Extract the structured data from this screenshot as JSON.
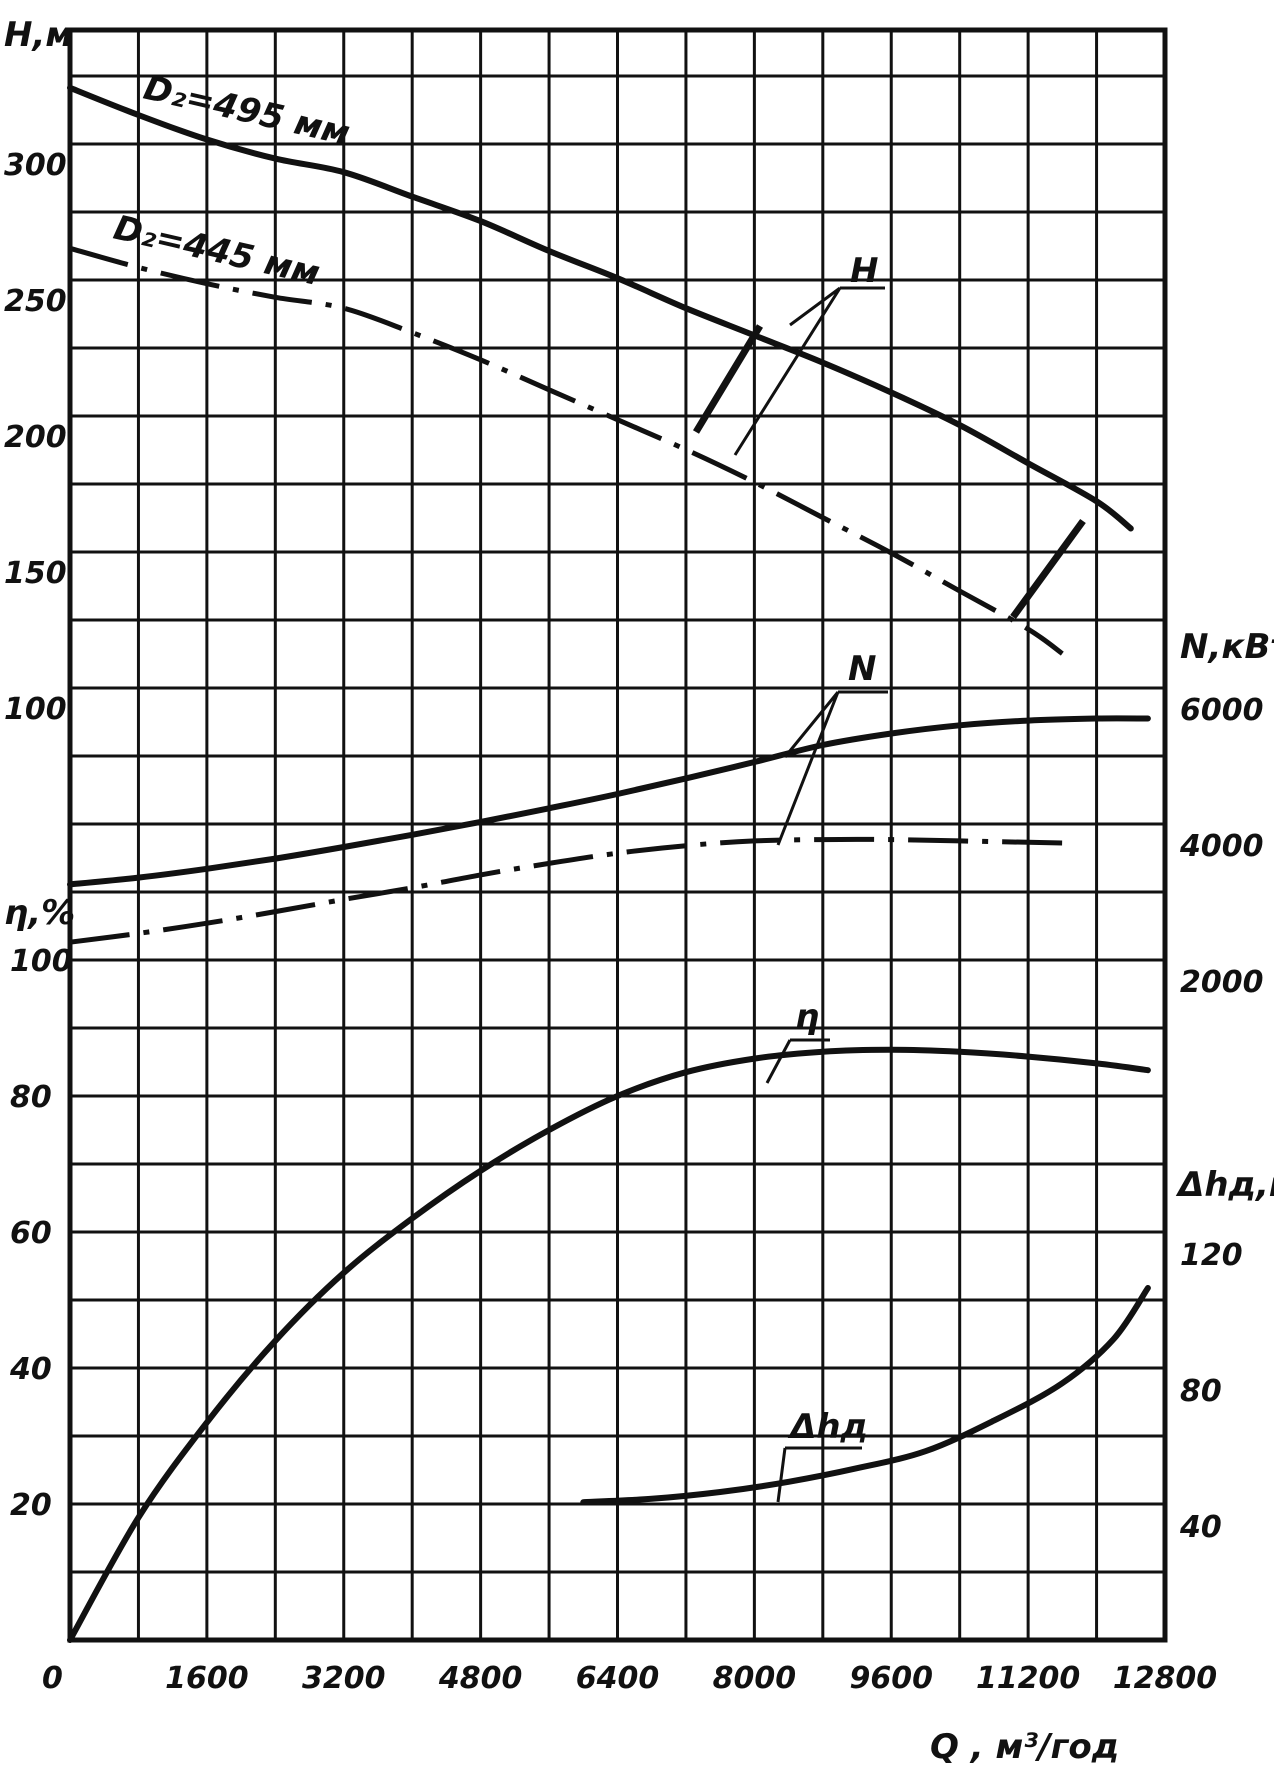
{
  "chart_data": {
    "type": "line",
    "x": {
      "label": "Q , м³/год",
      "ticks": [
        0,
        1600,
        3200,
        4800,
        6400,
        8000,
        9600,
        11200,
        12800
      ],
      "range": [
        0,
        12800
      ]
    },
    "left_axes": [
      {
        "key": "H",
        "label": "H,м",
        "ticks": [
          100,
          150,
          200,
          250,
          300
        ],
        "unit_min": 75,
        "unit_max": 337.5
      },
      {
        "key": "eta",
        "label": "η,%",
        "ticks": [
          0,
          20,
          40,
          60,
          80,
          100
        ],
        "unit_min": 0,
        "unit_max": 112.5
      }
    ],
    "right_axes": [
      {
        "key": "N",
        "label": "N,кВт",
        "ticks": [
          2000,
          4000,
          6000
        ]
      },
      {
        "key": "dh",
        "label": "Δhд,м",
        "ticks": [
          40,
          80,
          120
        ]
      }
    ],
    "series": [
      {
        "name": "D₂=495 мм",
        "axis": "H",
        "style": "solid",
        "points": [
          [
            0,
            328
          ],
          [
            800,
            318
          ],
          [
            1600,
            309
          ],
          [
            2400,
            302
          ],
          [
            3200,
            297
          ],
          [
            4000,
            288
          ],
          [
            4800,
            279
          ],
          [
            5600,
            268
          ],
          [
            6400,
            258
          ],
          [
            7200,
            247
          ],
          [
            8000,
            237
          ],
          [
            8800,
            227
          ],
          [
            9600,
            216
          ],
          [
            10400,
            204
          ],
          [
            11200,
            190
          ],
          [
            12000,
            176
          ],
          [
            12400,
            166
          ]
        ]
      },
      {
        "name": "D₂=445 мм",
        "axis": "H",
        "style": "dashdot",
        "points": [
          [
            0,
            269
          ],
          [
            800,
            262
          ],
          [
            1600,
            256
          ],
          [
            2400,
            251
          ],
          [
            3200,
            247
          ],
          [
            4000,
            238
          ],
          [
            4800,
            228
          ],
          [
            5600,
            217
          ],
          [
            6400,
            206
          ],
          [
            7200,
            195
          ],
          [
            8000,
            183
          ],
          [
            8800,
            170
          ],
          [
            9600,
            157
          ],
          [
            10400,
            143
          ],
          [
            11200,
            129
          ],
          [
            11600,
            120
          ]
        ]
      },
      {
        "name": "N (D₂=495 мм)",
        "axis": "N",
        "style": "solid",
        "points": [
          [
            0,
            3420
          ],
          [
            800,
            3520
          ],
          [
            1600,
            3650
          ],
          [
            2400,
            3800
          ],
          [
            3200,
            3970
          ],
          [
            4000,
            4150
          ],
          [
            4800,
            4340
          ],
          [
            5600,
            4540
          ],
          [
            6400,
            4750
          ],
          [
            7200,
            4980
          ],
          [
            8000,
            5220
          ],
          [
            8800,
            5470
          ],
          [
            9600,
            5640
          ],
          [
            10400,
            5760
          ],
          [
            11200,
            5830
          ],
          [
            12000,
            5860
          ],
          [
            12600,
            5860
          ]
        ]
      },
      {
        "name": "N (D₂=445 мм)",
        "axis": "N",
        "style": "dashdot",
        "points": [
          [
            0,
            2570
          ],
          [
            800,
            2700
          ],
          [
            1600,
            2850
          ],
          [
            2400,
            3020
          ],
          [
            3200,
            3200
          ],
          [
            4000,
            3370
          ],
          [
            4800,
            3560
          ],
          [
            5600,
            3730
          ],
          [
            6400,
            3880
          ],
          [
            7200,
            3990
          ],
          [
            8000,
            4060
          ],
          [
            8800,
            4080
          ],
          [
            9600,
            4080
          ],
          [
            10400,
            4060
          ],
          [
            11200,
            4040
          ],
          [
            11600,
            4030
          ]
        ]
      },
      {
        "name": "η",
        "axis": "eta",
        "style": "solid",
        "points": [
          [
            0,
            0
          ],
          [
            800,
            18
          ],
          [
            1600,
            32
          ],
          [
            2400,
            44
          ],
          [
            3200,
            54
          ],
          [
            4000,
            62
          ],
          [
            4800,
            69
          ],
          [
            5600,
            75
          ],
          [
            6400,
            80
          ],
          [
            7200,
            83.5
          ],
          [
            8000,
            85.5
          ],
          [
            8800,
            86.5
          ],
          [
            9600,
            86.8
          ],
          [
            10400,
            86.5
          ],
          [
            11200,
            85.8
          ],
          [
            12000,
            84.8
          ],
          [
            12600,
            83.8
          ]
        ]
      },
      {
        "name": "Δhд",
        "axis": "dh",
        "style": "solid",
        "points": [
          [
            6000,
            47
          ],
          [
            6800,
            48
          ],
          [
            7600,
            50
          ],
          [
            8400,
            53
          ],
          [
            9200,
            57
          ],
          [
            10000,
            62
          ],
          [
            10800,
            71
          ],
          [
            11600,
            82
          ],
          [
            12200,
            95
          ],
          [
            12600,
            110
          ]
        ]
      }
    ],
    "labels": {
      "d495": "D₂=495 мм",
      "d445": "D₂=445 мм",
      "H": "H",
      "N": "N",
      "eta": "η",
      "dh": "Δhд"
    },
    "grid": true,
    "legend": "none"
  }
}
